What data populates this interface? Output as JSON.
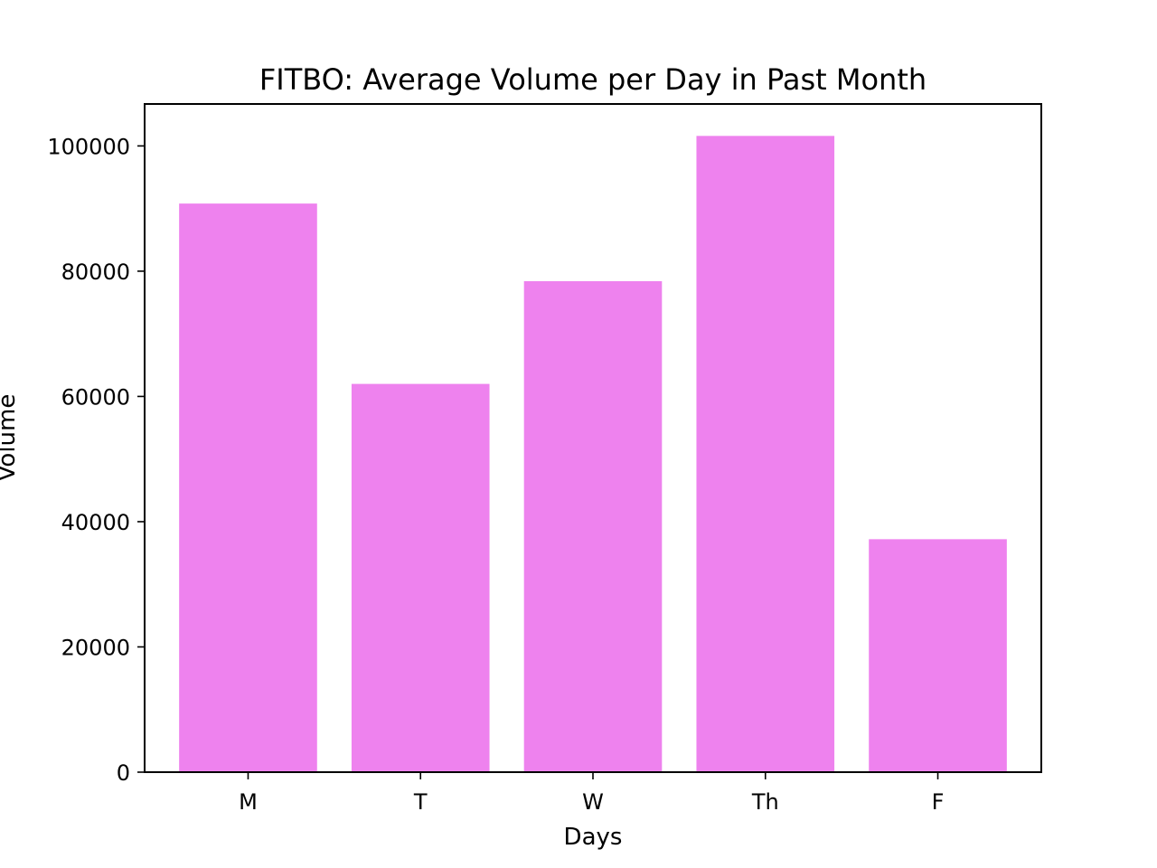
{
  "chart_data": {
    "type": "bar",
    "title": "FITBO: Average Volume per Day in Past Month",
    "xlabel": "Days",
    "ylabel": "Volume",
    "categories": [
      "M",
      "T",
      "W",
      "Th",
      "F"
    ],
    "values": [
      90800,
      62000,
      78400,
      101600,
      37200
    ],
    "ylim": [
      0,
      106700
    ],
    "yticks": [
      0,
      20000,
      40000,
      60000,
      80000,
      100000
    ],
    "bar_color": "#ee82ee",
    "grid": false,
    "legend": "none"
  }
}
